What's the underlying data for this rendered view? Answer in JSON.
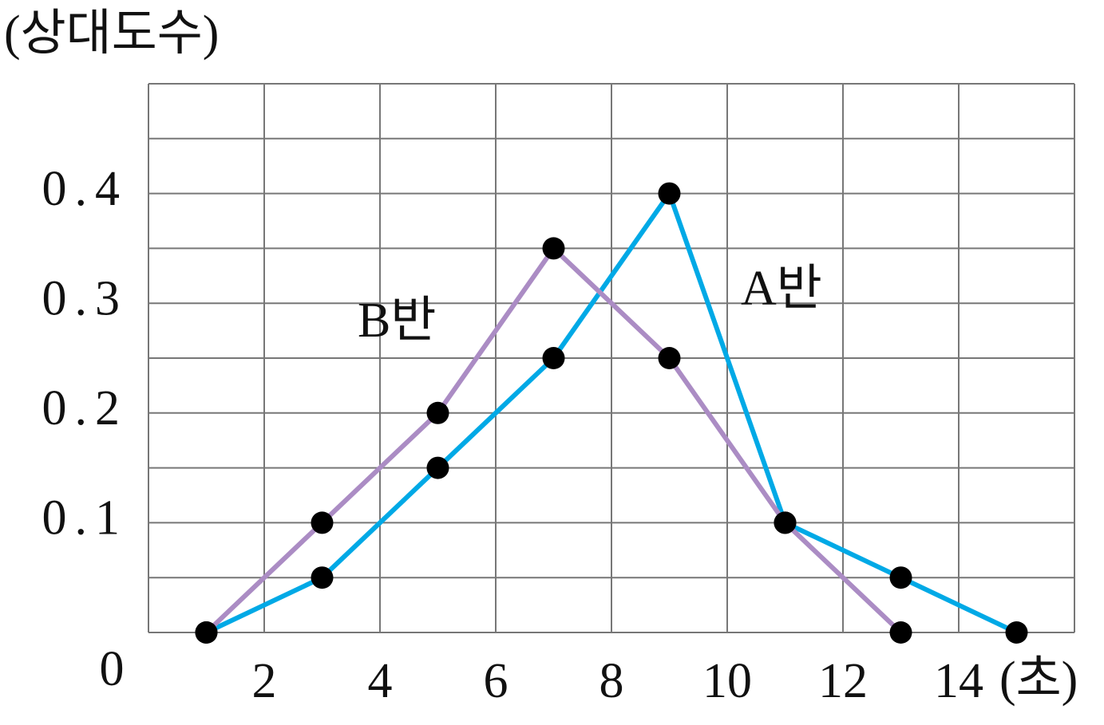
{
  "chart_data": {
    "type": "line",
    "y_label": "(상대도수)",
    "x_label": "(초)",
    "xlim": [
      0,
      16
    ],
    "ylim": [
      0,
      0.5
    ],
    "xticks": [
      0,
      2,
      4,
      6,
      8,
      10,
      12,
      14
    ],
    "yticks": [
      {
        "value": 0.1,
        "label": "0.1"
      },
      {
        "value": 0.2,
        "label": "0.2"
      },
      {
        "value": 0.3,
        "label": "0.3"
      },
      {
        "value": 0.4,
        "label": "0.4"
      }
    ],
    "xgrid": [
      0,
      2,
      4,
      6,
      8,
      10,
      12,
      14,
      16
    ],
    "ygrid": [
      0,
      0.05,
      0.1,
      0.15,
      0.2,
      0.25,
      0.3,
      0.35,
      0.4,
      0.45,
      0.5
    ],
    "grid": true,
    "series": [
      {
        "name": "A반",
        "color": "#00a9e6",
        "x": [
          1,
          3,
          5,
          7,
          9,
          11,
          13,
          15
        ],
        "values": [
          0,
          0.05,
          0.15,
          0.25,
          0.4,
          0.1,
          0.05,
          0
        ]
      },
      {
        "name": "B반",
        "color": "#ab8cc4",
        "x": [
          1,
          3,
          5,
          7,
          9,
          11,
          13
        ],
        "values": [
          0,
          0.1,
          0.2,
          0.35,
          0.25,
          0.1,
          0
        ]
      }
    ]
  }
}
